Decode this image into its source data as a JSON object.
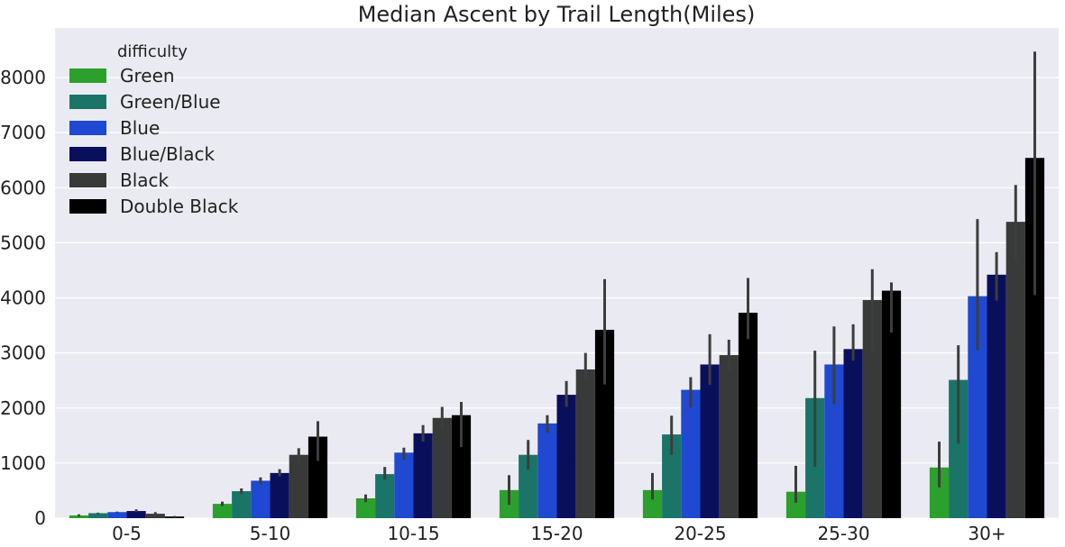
{
  "chart_data": {
    "type": "bar",
    "title": "Median Ascent by Trail Length(Miles)",
    "xlabel": "",
    "ylabel": "",
    "ylim": [
      0,
      8900
    ],
    "yticks": [
      0,
      1000,
      2000,
      3000,
      4000,
      5000,
      6000,
      7000,
      8000
    ],
    "grid": true,
    "legend": {
      "title": "difficulty",
      "placement": "top-left"
    },
    "categories": [
      "0-5",
      "5-10",
      "10-15",
      "15-20",
      "20-25",
      "25-30",
      "30+"
    ],
    "series": [
      {
        "name": "Green",
        "color": "#2ca02c",
        "values": [
          50,
          260,
          360,
          510,
          510,
          480,
          920
        ],
        "error": [
          [
            30,
            70
          ],
          [
            220,
            300
          ],
          [
            290,
            430
          ],
          [
            240,
            780
          ],
          [
            340,
            820
          ],
          [
            280,
            950
          ],
          [
            560,
            1390
          ]
        ]
      },
      {
        "name": "Green/Blue",
        "color": "#1a7568",
        "values": [
          90,
          490,
          800,
          1150,
          1520,
          2180,
          2510
        ],
        "error": [
          [
            80,
            100
          ],
          [
            440,
            540
          ],
          [
            700,
            930
          ],
          [
            880,
            1420
          ],
          [
            1150,
            1860
          ],
          [
            930,
            3040
          ],
          [
            1350,
            3140
          ]
        ]
      },
      {
        "name": "Blue",
        "color": "#1f49d1",
        "values": [
          110,
          680,
          1190,
          1720,
          2330,
          2790,
          4030
        ],
        "error": [
          [
            100,
            120
          ],
          [
            620,
            740
          ],
          [
            1060,
            1280
          ],
          [
            1550,
            1870
          ],
          [
            2010,
            2560
          ],
          [
            2070,
            3480
          ],
          [
            3050,
            5430
          ]
        ]
      },
      {
        "name": "Blue/Black",
        "color": "#0a0f5c",
        "values": [
          130,
          820,
          1540,
          2240,
          2790,
          3070,
          4420
        ],
        "error": [
          [
            110,
            160
          ],
          [
            760,
            890
          ],
          [
            1390,
            1690
          ],
          [
            2020,
            2490
          ],
          [
            2420,
            3340
          ],
          [
            2860,
            3520
          ],
          [
            3950,
            4830
          ]
        ]
      },
      {
        "name": "Black",
        "color": "#373a39",
        "values": [
          80,
          1150,
          1820,
          2700,
          2960,
          3960,
          5380
        ],
        "error": [
          [
            50,
            110
          ],
          [
            1000,
            1270
          ],
          [
            1620,
            2020
          ],
          [
            2500,
            3000
          ],
          [
            2670,
            3240
          ],
          [
            3040,
            4520
          ],
          [
            4700,
            6050
          ]
        ]
      },
      {
        "name": "Double Black",
        "color": "#000000",
        "values": [
          30,
          1480,
          1870,
          3420,
          3730,
          4130,
          6540
        ],
        "error": [
          [
            10,
            40
          ],
          [
            1040,
            1760
          ],
          [
            1290,
            2110
          ],
          [
            2430,
            4340
          ],
          [
            3250,
            4360
          ],
          [
            3370,
            4280
          ],
          [
            4050,
            8470
          ]
        ]
      }
    ],
    "error_bar_color": "#3d3d3d"
  }
}
